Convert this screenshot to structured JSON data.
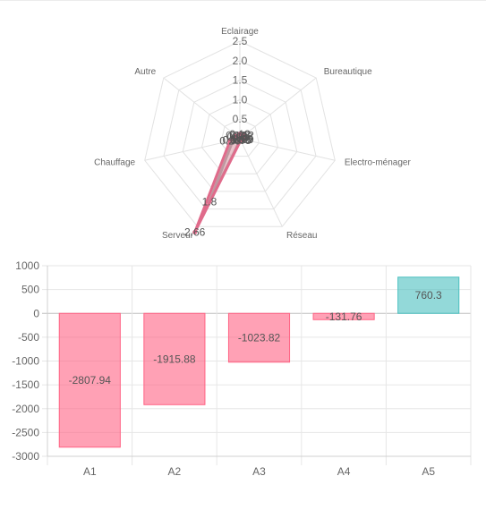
{
  "chart_data": [
    {
      "type": "radar",
      "axes": [
        "Eclairage",
        "Bureautique",
        "Electro-ménager",
        "Réseau",
        "Serveur",
        "Chauffage",
        "Autre"
      ],
      "r_ticks": [
        "0.5",
        "1.0",
        "1.5",
        "2.0",
        "2.5"
      ],
      "r_range": [
        0,
        2.5
      ],
      "grid": true,
      "series": [
        {
          "values": [
            0.12,
            0.12,
            0.09,
            0.05,
            2.66,
            0.26,
            0.12
          ],
          "data_labels": [
            "0.12",
            "0.12",
            "0.09",
            "0.05",
            "2.66",
            "0.26",
            "0.12"
          ],
          "fill": "rgba(255,99,132,0.25)",
          "stroke": "#e06b8b"
        },
        {
          "values": [
            0.08,
            0.08,
            0.06,
            0.03,
            1.8,
            0.18,
            0.08
          ],
          "data_labels": [
            "0.08",
            "0.08",
            "0.06",
            "0.03",
            "1.8",
            "0.18",
            "0.08"
          ],
          "fill": "rgba(150,150,150,0.25)",
          "stroke": "#aaaaaa"
        }
      ]
    },
    {
      "type": "bar",
      "categories": [
        "A1",
        "A2",
        "A3",
        "A4",
        "A5"
      ],
      "values": [
        -2807.94,
        -1915.88,
        -1023.82,
        -131.76,
        760.3
      ],
      "data_labels": [
        "-2807.94",
        "-1915.88",
        "-1023.82",
        "-131.76",
        "760.3"
      ],
      "ylim": [
        -3000,
        1000
      ],
      "yticks": [
        "1000",
        "500",
        "0",
        "-500",
        "-1000",
        "-1500",
        "-2000",
        "-2500",
        "-3000"
      ],
      "grid": true,
      "colors": {
        "negative_fill": "rgba(255,99,132,0.6)",
        "negative_stroke": "#ff6384",
        "positive_fill": "rgba(75,192,192,0.6)",
        "positive_stroke": "#4bc0c0"
      }
    }
  ]
}
